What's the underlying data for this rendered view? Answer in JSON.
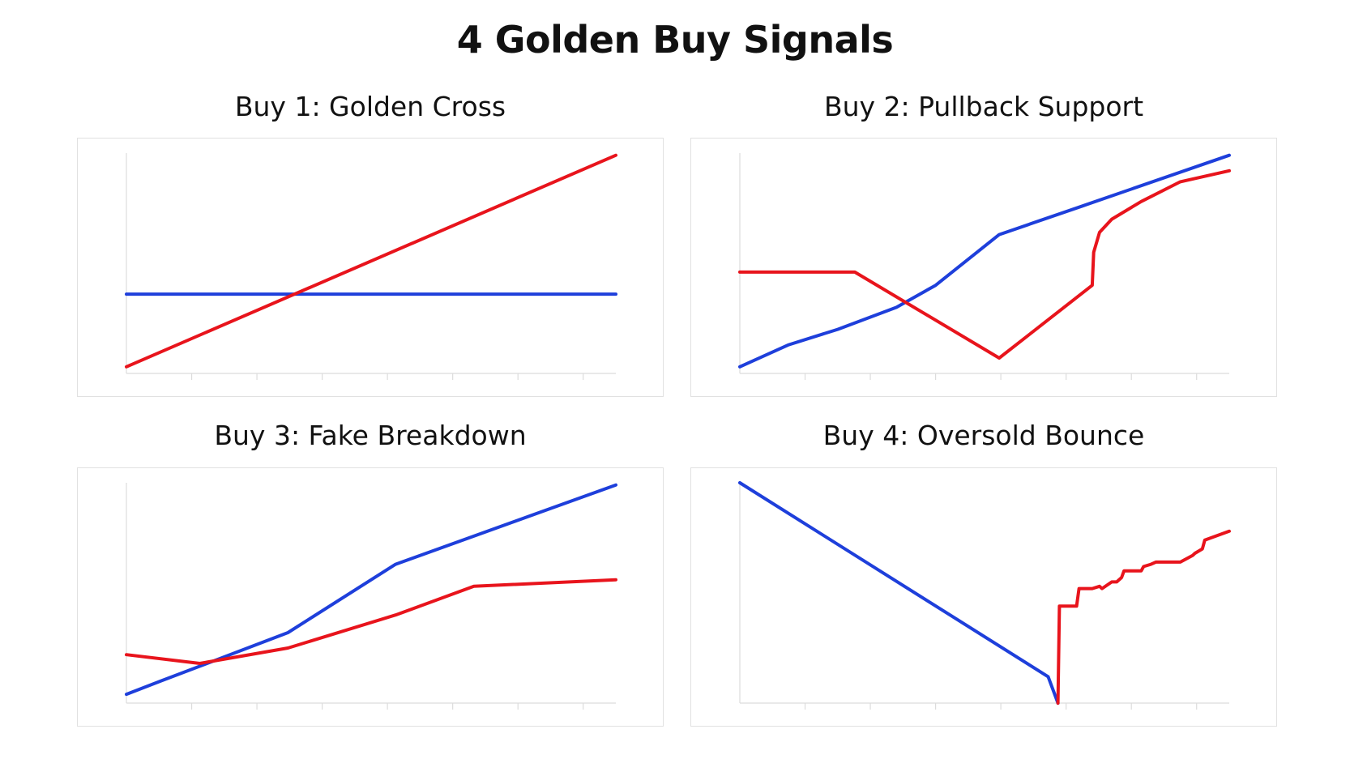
{
  "title": "4 Golden Buy Signals",
  "colors": {
    "fast": "#e8141c",
    "slow": "#1e3fdb",
    "axis": "#dcdcdc",
    "border": "#e1e1e1"
  },
  "chart_data": [
    {
      "type": "line",
      "title": "Buy 1: Golden Cross",
      "xlim": [
        0,
        100
      ],
      "ylim": [
        0,
        100
      ],
      "series": [
        {
          "color": "#1e3fdb",
          "x": [
            0,
            100
          ],
          "y": [
            36,
            36
          ]
        },
        {
          "color": "#e8141c",
          "x": [
            0,
            100
          ],
          "y": [
            3,
            99
          ]
        }
      ]
    },
    {
      "type": "line",
      "title": "Buy 2: Pullback Support",
      "xlim": [
        0,
        100
      ],
      "ylim": [
        0,
        100
      ],
      "series": [
        {
          "color": "#1e3fdb",
          "x": [
            0,
            10,
            20,
            32,
            40,
            53,
            70,
            100
          ],
          "y": [
            3,
            13,
            20,
            30,
            40,
            63,
            76,
            99
          ]
        },
        {
          "color": "#e8141c",
          "x": [
            0,
            23.5,
            53,
            72,
            72.3,
            73.5,
            76,
            82,
            90,
            100
          ],
          "y": [
            46,
            46,
            7,
            40,
            55,
            64,
            70,
            78,
            87,
            92
          ]
        }
      ]
    },
    {
      "type": "line",
      "title": "Buy 3: Fake Breakdown",
      "xlim": [
        0,
        100
      ],
      "ylim": [
        0,
        100
      ],
      "series": [
        {
          "color": "#1e3fdb",
          "x": [
            0,
            7,
            33,
            55,
            100
          ],
          "y": [
            4,
            10,
            32,
            63,
            99
          ]
        },
        {
          "color": "#e8141c",
          "x": [
            0,
            15,
            33,
            55,
            71,
            100
          ],
          "y": [
            22,
            18,
            25,
            40,
            53,
            56
          ]
        }
      ]
    },
    {
      "type": "line",
      "title": "Buy 4: Oversold Bounce",
      "xlim": [
        0,
        100
      ],
      "ylim": [
        0,
        100
      ],
      "series": [
        {
          "color": "#1e3fdb",
          "x": [
            0,
            63,
            65
          ],
          "y": [
            100,
            12,
            0
          ]
        },
        {
          "color": "#e8141c",
          "x": [
            65,
            65.3,
            68.8,
            69.3,
            72,
            73.5,
            74,
            76,
            77,
            78,
            78.5,
            82,
            82.5,
            84,
            85,
            88,
            90,
            92.5,
            93,
            94.5,
            95,
            100
          ],
          "y": [
            0,
            44,
            44,
            52,
            52,
            53,
            52,
            55,
            55,
            57,
            60,
            60,
            62,
            63,
            64,
            64,
            64,
            67,
            68,
            70,
            74,
            78
          ]
        }
      ]
    }
  ]
}
